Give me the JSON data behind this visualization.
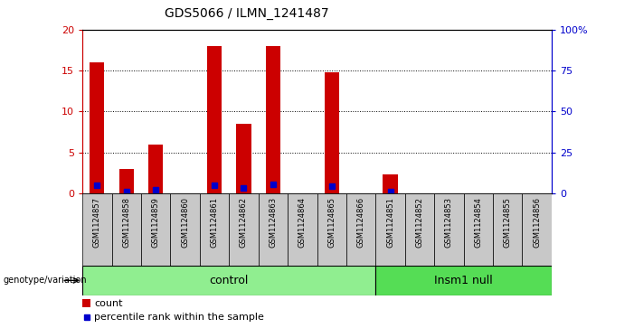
{
  "title": "GDS5066 / ILMN_1241487",
  "samples": [
    "GSM1124857",
    "GSM1124858",
    "GSM1124859",
    "GSM1124860",
    "GSM1124861",
    "GSM1124862",
    "GSM1124863",
    "GSM1124864",
    "GSM1124865",
    "GSM1124866",
    "GSM1124851",
    "GSM1124852",
    "GSM1124853",
    "GSM1124854",
    "GSM1124855",
    "GSM1124856"
  ],
  "counts": [
    16,
    3,
    6,
    0,
    18,
    8.5,
    18,
    0,
    14.8,
    0,
    2.3,
    0,
    0,
    0,
    0,
    0
  ],
  "percentile_ranks": [
    5.0,
    1.0,
    2.3,
    0,
    5.0,
    3.5,
    5.5,
    0,
    4.5,
    0,
    1.0,
    0,
    0,
    0,
    0,
    0
  ],
  "groups": [
    {
      "label": "control",
      "start": 0,
      "end": 10,
      "color": "#90EE90"
    },
    {
      "label": "Insm1 null",
      "start": 10,
      "end": 16,
      "color": "#55DD55"
    }
  ],
  "ylim_left": [
    0,
    20
  ],
  "ylim_right": [
    0,
    100
  ],
  "yticks_left": [
    0,
    5,
    10,
    15,
    20
  ],
  "yticks_right": [
    0,
    25,
    50,
    75,
    100
  ],
  "ytick_labels_right": [
    "0",
    "25",
    "50",
    "75",
    "100%"
  ],
  "bar_color": "#CC0000",
  "dot_color": "#0000CC",
  "bg_color": "#C8C8C8",
  "left_axis_color": "#CC0000",
  "right_axis_color": "#0000CC",
  "bar_width": 0.5,
  "genotype_label": "genotype/variation"
}
